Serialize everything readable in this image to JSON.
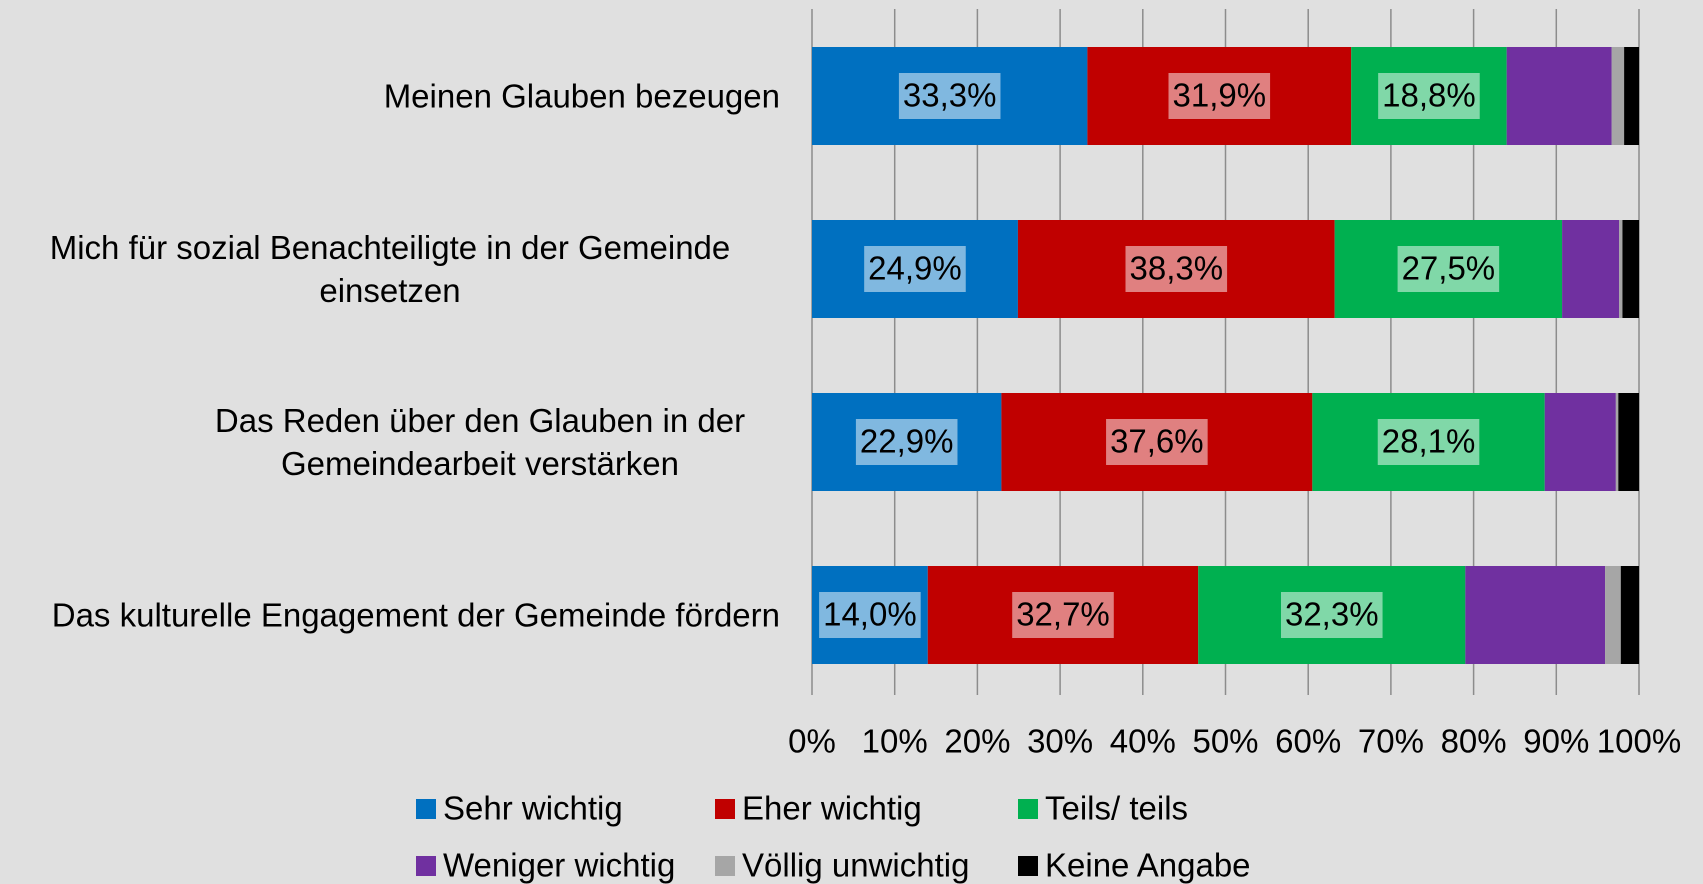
{
  "chart_data": {
    "type": "stacked_barh",
    "categories": [
      "Meinen Glauben bezeugen",
      "Mich für sozial Benachteiligte in der Gemeinde einsetzen",
      "Das Reden über den Glauben in der Gemeindearbeit verstärken",
      "Das kulturelle Engagement der Gemeinde fördern"
    ],
    "series": [
      {
        "name": "Sehr wichtig",
        "color": "#0070c0",
        "values": [
          33.3,
          24.9,
          22.9,
          14.0
        ],
        "value_labels": [
          "33,3%",
          "24,9%",
          "22,9%",
          "14,0%"
        ]
      },
      {
        "name": "Eher wichtig",
        "color": "#c00000",
        "values": [
          31.9,
          38.3,
          37.6,
          32.7
        ],
        "value_labels": [
          "31,9%",
          "38,3%",
          "37,6%",
          "32,7%"
        ]
      },
      {
        "name": "Teils/ teils",
        "color": "#00b050",
        "values": [
          18.8,
          27.5,
          28.1,
          32.3
        ],
        "value_labels": [
          "18,8%",
          "27,5%",
          "28,1%",
          "32,3%"
        ]
      },
      {
        "name": "Weniger wichtig",
        "color": "#7030a0",
        "values": [
          12.7,
          6.9,
          8.6,
          16.9
        ]
      },
      {
        "name": "Völlig unwichtig",
        "color": "#a6a6a6",
        "values": [
          1.5,
          0.4,
          0.3,
          1.9
        ]
      },
      {
        "name": "Keine Angabe",
        "color": "#000000",
        "values": [
          1.8,
          2.0,
          2.5,
          2.2
        ]
      }
    ],
    "xlim": [
      0,
      100
    ],
    "xticks": [
      {
        "value": 0,
        "label": "0%"
      },
      {
        "value": 10,
        "label": "10%"
      },
      {
        "value": 20,
        "label": "20%"
      },
      {
        "value": 30,
        "label": "30%"
      },
      {
        "value": 40,
        "label": "40%"
      },
      {
        "value": 50,
        "label": "50%"
      },
      {
        "value": 60,
        "label": "60%"
      },
      {
        "value": 70,
        "label": "70%"
      },
      {
        "value": 80,
        "label": "80%"
      },
      {
        "value": 90,
        "label": "90%"
      },
      {
        "value": 100,
        "label": "100%"
      }
    ],
    "grid": true
  }
}
